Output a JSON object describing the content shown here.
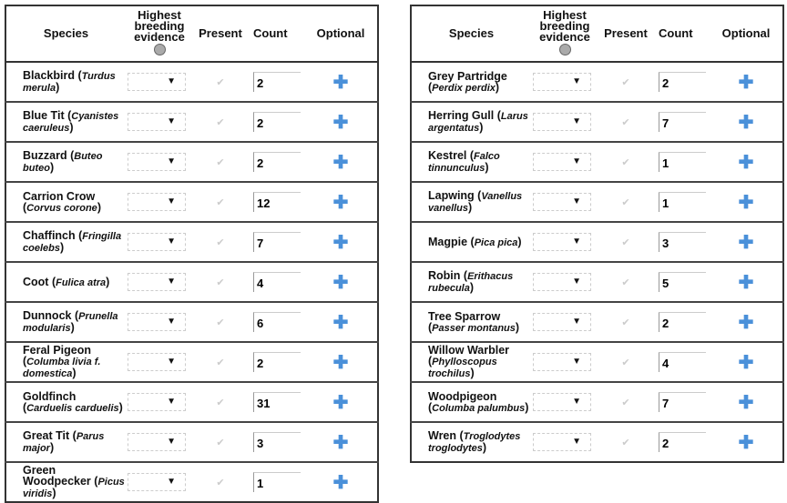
{
  "headers": {
    "species": "Species",
    "evidence": "Highest breeding evidence",
    "present": "Present",
    "count": "Count",
    "optional": "Optional"
  },
  "icons": {
    "info": "info-icon",
    "dropdown": "chevron-down-icon",
    "check": "check-icon",
    "add": "plus-icon"
  },
  "accent": "#4a90d9",
  "left": [
    {
      "name": "Blackbird",
      "latin": "Turdus merula",
      "count": "2"
    },
    {
      "name": "Blue Tit",
      "latin": "Cyanistes caeruleus",
      "count": "2"
    },
    {
      "name": "Buzzard",
      "latin": "Buteo buteo",
      "count": "2"
    },
    {
      "name": "Carrion Crow",
      "latin": "Corvus corone",
      "count": "12"
    },
    {
      "name": "Chaffinch",
      "latin": "Fringilla coelebs",
      "count": "7"
    },
    {
      "name": "Coot",
      "latin": "Fulica atra",
      "count": "4"
    },
    {
      "name": "Dunnock",
      "latin": "Prunella modularis",
      "count": "6"
    },
    {
      "name": "Feral Pigeon",
      "latin": "Columba livia f. domestica",
      "count": "2"
    },
    {
      "name": "Goldfinch",
      "latin": "Carduelis carduelis",
      "count": "31"
    },
    {
      "name": "Great Tit",
      "latin": "Parus major",
      "count": "3"
    },
    {
      "name": "Green Woodpecker",
      "latin": "Picus viridis",
      "count": "1"
    }
  ],
  "right": [
    {
      "name": "Grey Partridge",
      "latin": "Perdix perdix",
      "count": "2"
    },
    {
      "name": "Herring Gull",
      "latin": "Larus argentatus",
      "count": "7"
    },
    {
      "name": "Kestrel",
      "latin": "Falco tinnunculus",
      "count": "1"
    },
    {
      "name": "Lapwing",
      "latin": "Vanellus vanellus",
      "count": "1"
    },
    {
      "name": "Magpie",
      "latin": "Pica pica",
      "count": "3"
    },
    {
      "name": "Robin",
      "latin": "Erithacus rubecula",
      "count": "5"
    },
    {
      "name": "Tree Sparrow",
      "latin": "Passer montanus",
      "count": "2"
    },
    {
      "name": "Willow Warbler",
      "latin": "Phylloscopus trochilus",
      "count": "4"
    },
    {
      "name": "Woodpigeon",
      "latin": "Columba palumbus",
      "count": "7"
    },
    {
      "name": "Wren",
      "latin": "Troglodytes troglodytes",
      "count": "2"
    }
  ]
}
